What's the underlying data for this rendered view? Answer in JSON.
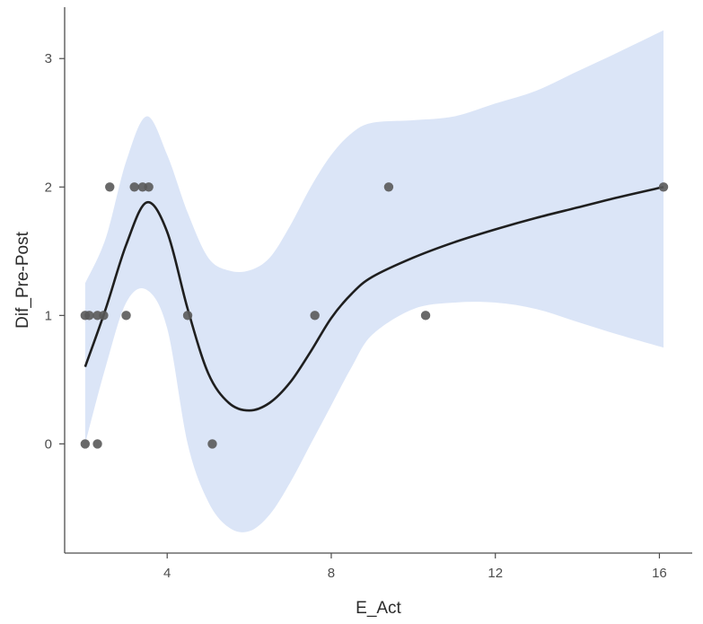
{
  "chart_data": {
    "type": "scatter",
    "title": "",
    "xlabel": "E_Act",
    "ylabel": "Dif_Pre-Post",
    "xlim": [
      1.5,
      16.8
    ],
    "ylim": [
      -0.85,
      3.4
    ],
    "x_ticks": [
      4,
      8,
      12,
      16
    ],
    "y_ticks": [
      0,
      1,
      2,
      3
    ],
    "x_tick_labels": [
      "4",
      "8",
      "12",
      "16"
    ],
    "y_tick_labels": [
      "0",
      "1",
      "2",
      "3"
    ],
    "grid": false,
    "legend": "none",
    "colors": {
      "points": "#595959",
      "smooth_line": "#1f1f1f",
      "confidence_band": "#dbe5f7",
      "axis": "#4d4d4d"
    },
    "series": [
      {
        "kind": "points",
        "points": [
          {
            "x": 2.0,
            "y": 1
          },
          {
            "x": 2.1,
            "y": 1
          },
          {
            "x": 2.3,
            "y": 1
          },
          {
            "x": 2.45,
            "y": 1
          },
          {
            "x": 3.0,
            "y": 1
          },
          {
            "x": 4.5,
            "y": 1
          },
          {
            "x": 7.6,
            "y": 1
          },
          {
            "x": 10.3,
            "y": 1
          },
          {
            "x": 2.6,
            "y": 2
          },
          {
            "x": 3.2,
            "y": 2
          },
          {
            "x": 3.4,
            "y": 2
          },
          {
            "x": 3.55,
            "y": 2
          },
          {
            "x": 9.4,
            "y": 2
          },
          {
            "x": 16.1,
            "y": 2
          },
          {
            "x": 2.0,
            "y": 0
          },
          {
            "x": 2.3,
            "y": 0
          },
          {
            "x": 5.1,
            "y": 0
          }
        ]
      },
      {
        "kind": "smooth",
        "x": [
          2.0,
          2.5,
          3.0,
          3.5,
          4.0,
          4.5,
          5.0,
          5.5,
          6.0,
          6.5,
          7.0,
          7.5,
          8.0,
          8.5,
          9.0,
          10.0,
          11.0,
          12.0,
          13.0,
          14.0,
          15.0,
          16.1
        ],
        "y": [
          0.6,
          1.05,
          1.55,
          1.88,
          1.65,
          1.05,
          0.55,
          0.32,
          0.26,
          0.32,
          0.48,
          0.72,
          0.98,
          1.17,
          1.3,
          1.45,
          1.57,
          1.67,
          1.76,
          1.84,
          1.92,
          2.0
        ],
        "lower": [
          0.0,
          0.6,
          1.1,
          1.2,
          0.9,
          0.0,
          -0.45,
          -0.65,
          -0.68,
          -0.55,
          -0.3,
          0.0,
          0.3,
          0.6,
          0.85,
          1.05,
          1.1,
          1.1,
          1.05,
          0.95,
          0.85,
          0.75
        ],
        "upper": [
          1.25,
          1.6,
          2.2,
          2.55,
          2.25,
          1.8,
          1.45,
          1.35,
          1.35,
          1.45,
          1.7,
          2.0,
          2.25,
          2.42,
          2.5,
          2.52,
          2.55,
          2.65,
          2.75,
          2.9,
          3.05,
          3.22
        ]
      }
    ]
  }
}
